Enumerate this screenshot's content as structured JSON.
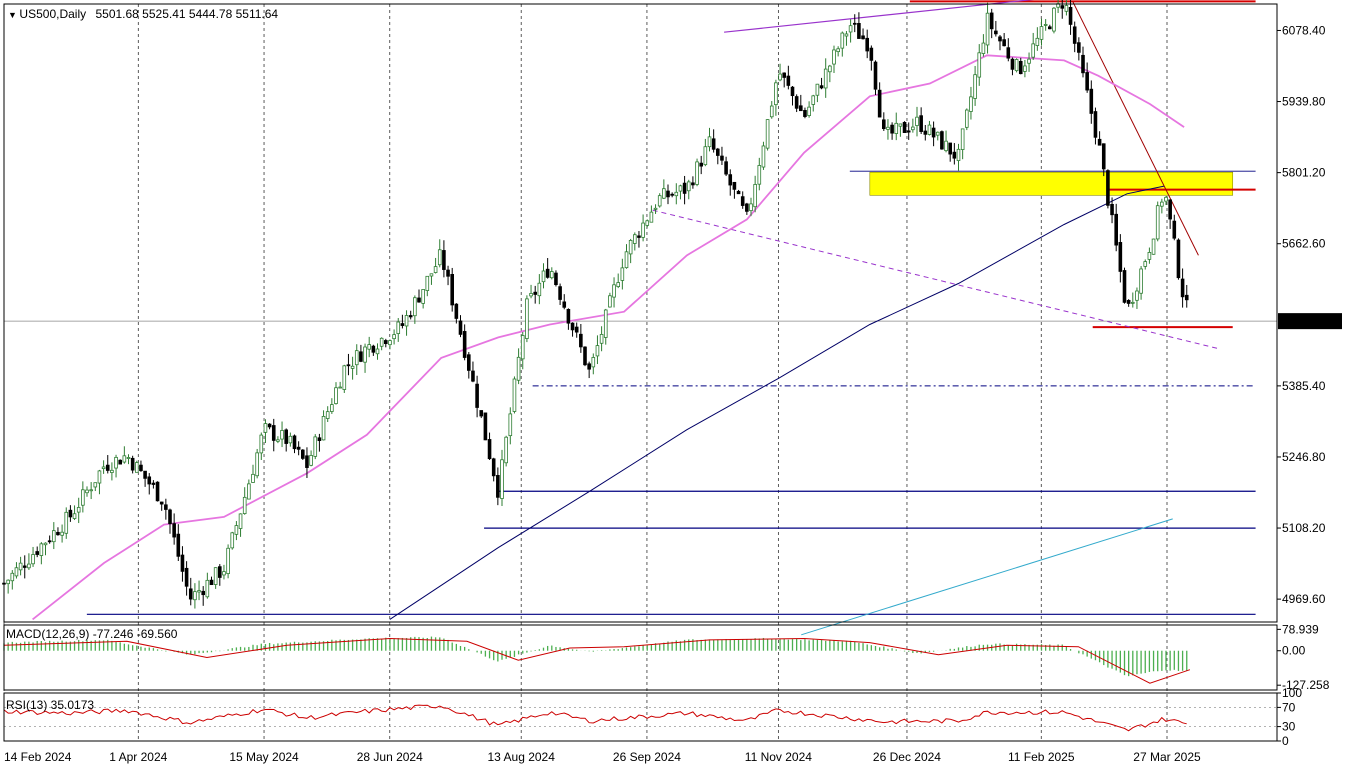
{
  "window": {
    "symbol": "US500,Daily",
    "ohlc": "5501.68 5525.41 5444.78 5511.64"
  },
  "indicators": {
    "macd_title": "MACD(12,26,9) -77.246 -69.560",
    "rsi_title": "RSI(13) 35.0173"
  },
  "colors": {
    "background": "#ffffff",
    "bull_candle": "#2e7d32",
    "bear_candle": "#000000",
    "ma_fast": "#e676e0",
    "ma_slow": "#000066",
    "macd_hist": "#4caf50",
    "macd_signal": "#cc0000",
    "rsi_line": "#cc0000",
    "resistance": "#d40000",
    "zone": "#ffff00",
    "current_price_tag": "#000000"
  },
  "chart_data": [
    {
      "type": "candlestick",
      "name": "price",
      "x_ticks": [
        "14 Feb 2024",
        "1 Apr 2024",
        "15 May 2024",
        "28 Jun 2024",
        "13 Aug 2024",
        "26 Sep 2024",
        "11 Nov 2024",
        "26 Dec 2024",
        "11 Feb 2025",
        "27 Mar 2025"
      ],
      "y_ticks": [
        4969.6,
        5108.2,
        5246.8,
        5385.4,
        5662.6,
        5801.2,
        5939.8,
        6078.4
      ],
      "y_tick_labels": [
        "4969.60",
        "5108.20",
        "5246.80",
        "5385.40",
        "5662.60",
        "5801.20",
        "5939.80",
        "6078.40"
      ],
      "ylim": [
        4925,
        6130
      ],
      "current_price": 5511.64,
      "current_price_label": "5511.64",
      "close_path": [
        {
          "date": "2024-02-14",
          "close": 5000
        },
        {
          "date": "2024-02-26",
          "close": 5070
        },
        {
          "date": "2024-03-08",
          "close": 5130
        },
        {
          "date": "2024-03-20",
          "close": 5230
        },
        {
          "date": "2024-03-28",
          "close": 5250
        },
        {
          "date": "2024-04-10",
          "close": 5160
        },
        {
          "date": "2024-04-19",
          "close": 4970
        },
        {
          "date": "2024-05-01",
          "close": 5030
        },
        {
          "date": "2024-05-15",
          "close": 5300
        },
        {
          "date": "2024-05-23",
          "close": 5280
        },
        {
          "date": "2024-05-30",
          "close": 5230
        },
        {
          "date": "2024-06-12",
          "close": 5420
        },
        {
          "date": "2024-06-20",
          "close": 5460
        },
        {
          "date": "2024-07-02",
          "close": 5500
        },
        {
          "date": "2024-07-16",
          "close": 5640
        },
        {
          "date": "2024-07-25",
          "close": 5440
        },
        {
          "date": "2024-08-05",
          "close": 5180
        },
        {
          "date": "2024-08-15",
          "close": 5540
        },
        {
          "date": "2024-08-23",
          "close": 5620
        },
        {
          "date": "2024-09-06",
          "close": 5410
        },
        {
          "date": "2024-09-18",
          "close": 5640
        },
        {
          "date": "2024-09-30",
          "close": 5750
        },
        {
          "date": "2024-10-10",
          "close": 5770
        },
        {
          "date": "2024-10-18",
          "close": 5860
        },
        {
          "date": "2024-10-31",
          "close": 5710
        },
        {
          "date": "2024-11-11",
          "close": 6000
        },
        {
          "date": "2024-11-20",
          "close": 5910
        },
        {
          "date": "2024-12-06",
          "close": 6090
        },
        {
          "date": "2024-12-13",
          "close": 6050
        },
        {
          "date": "2024-12-18",
          "close": 5870
        },
        {
          "date": "2024-12-30",
          "close": 5900
        },
        {
          "date": "2025-01-13",
          "close": 5830
        },
        {
          "date": "2025-01-23",
          "close": 6100
        },
        {
          "date": "2025-02-03",
          "close": 6000
        },
        {
          "date": "2025-02-19",
          "close": 6140
        },
        {
          "date": "2025-03-03",
          "close": 5860
        },
        {
          "date": "2025-03-13",
          "close": 5530
        },
        {
          "date": "2025-03-21",
          "close": 5660
        },
        {
          "date": "2025-03-26",
          "close": 5770
        },
        {
          "date": "2025-04-01",
          "close": 5580
        },
        {
          "date": "2025-04-04",
          "close": 5512
        }
      ],
      "moving_averages": [
        {
          "id": "fast",
          "points": [
            {
              "date": "2024-02-24",
              "value": 4930
            },
            {
              "date": "2024-03-20",
              "value": 5040
            },
            {
              "date": "2024-04-10",
              "value": 5115
            },
            {
              "date": "2024-05-01",
              "value": 5130
            },
            {
              "date": "2024-05-30",
              "value": 5215
            },
            {
              "date": "2024-06-20",
              "value": 5290
            },
            {
              "date": "2024-07-16",
              "value": 5440
            },
            {
              "date": "2024-08-05",
              "value": 5480
            },
            {
              "date": "2024-08-23",
              "value": 5505
            },
            {
              "date": "2024-09-18",
              "value": 5530
            },
            {
              "date": "2024-10-10",
              "value": 5640
            },
            {
              "date": "2024-10-31",
              "value": 5710
            },
            {
              "date": "2024-11-20",
              "value": 5840
            },
            {
              "date": "2024-12-13",
              "value": 5950
            },
            {
              "date": "2025-01-03",
              "value": 5975
            },
            {
              "date": "2025-01-23",
              "value": 6030
            },
            {
              "date": "2025-02-19",
              "value": 6020
            },
            {
              "date": "2025-03-03",
              "value": 5990
            },
            {
              "date": "2025-03-21",
              "value": 5935
            },
            {
              "date": "2025-04-02",
              "value": 5890
            }
          ]
        },
        {
          "id": "slow",
          "points": [
            {
              "date": "2024-06-28",
              "value": 4930
            },
            {
              "date": "2024-08-05",
              "value": 5070
            },
            {
              "date": "2024-09-06",
              "value": 5180
            },
            {
              "date": "2024-10-10",
              "value": 5300
            },
            {
              "date": "2024-11-11",
              "value": 5400
            },
            {
              "date": "2024-12-13",
              "value": 5505
            },
            {
              "date": "2025-01-13",
              "value": 5585
            },
            {
              "date": "2025-02-19",
              "value": 5700
            },
            {
              "date": "2025-03-13",
              "value": 5760
            },
            {
              "date": "2025-03-26",
              "value": 5775
            }
          ]
        }
      ],
      "horizontal_lines": [
        {
          "id": "resistance-top",
          "value": 6135,
          "from": "2024-12-27",
          "to": "2025-04-27",
          "style": "solid-red"
        },
        {
          "id": "resistance-zone-line",
          "value": 5768,
          "from": "2025-03-06",
          "to": "2025-04-27",
          "style": "solid-red"
        },
        {
          "id": "zone-top-line",
          "value": 5804,
          "from": "2024-12-06",
          "to": "2025-04-27",
          "style": "thin-navy"
        },
        {
          "id": "neckline",
          "value": 5500,
          "from": "2025-03-01",
          "to": "2025-04-19",
          "style": "solid-red"
        },
        {
          "id": "august-support",
          "value": 5385.4,
          "from": "2024-08-17",
          "to": "2025-04-27",
          "style": "dashdot-navy"
        },
        {
          "id": "support-5180",
          "value": 5180,
          "from": "2024-08-05",
          "to": "2025-04-27",
          "style": "navy"
        },
        {
          "id": "support-5108",
          "value": 5108,
          "from": "2024-07-31",
          "to": "2025-04-27",
          "style": "navy"
        },
        {
          "id": "support-4940",
          "value": 4940,
          "from": "2024-03-14",
          "to": "2025-04-27",
          "style": "navy"
        }
      ],
      "zones": [
        {
          "id": "supply-zone",
          "from": "2024-12-13",
          "to": "2025-04-19",
          "low": 5757,
          "high": 5802
        }
      ],
      "trend_lines": [
        {
          "id": "upper-channel",
          "from": {
            "date": "2024-10-23",
            "value": 6075
          },
          "to": {
            "date": "2025-04-19",
            "value": 6180
          },
          "style": "purple"
        },
        {
          "id": "lower-channel",
          "from": {
            "date": "2024-09-28",
            "value": 5728
          },
          "to": {
            "date": "2025-04-14",
            "value": 5458
          },
          "style": "dashed-purple"
        },
        {
          "id": "descending-resistance",
          "from": {
            "date": "2025-02-22",
            "value": 6135
          },
          "to": {
            "date": "2025-04-07",
            "value": 5640
          },
          "style": "dark-red"
        },
        {
          "id": "long-trend",
          "from": {
            "date": "2024-11-19",
            "value": 4900
          },
          "to": {
            "date": "2025-03-29",
            "value": 5126
          },
          "style": "teal"
        }
      ]
    },
    {
      "type": "macd",
      "name": "MACD(12,26,9)",
      "y_ticks": [
        78.939,
        0.0,
        -127.258
      ],
      "y_tick_labels": [
        "78.939",
        "0.00",
        "-127.258"
      ],
      "ylim": [
        -145,
        95
      ],
      "macd_main": -77.246,
      "signal": -69.56,
      "histogram_path": [
        {
          "date": "2024-02-14",
          "value": 30
        },
        {
          "date": "2024-03-20",
          "value": 40
        },
        {
          "date": "2024-04-19",
          "value": -15
        },
        {
          "date": "2024-05-15",
          "value": 25
        },
        {
          "date": "2024-06-20",
          "value": 45
        },
        {
          "date": "2024-07-16",
          "value": 50
        },
        {
          "date": "2024-08-05",
          "value": -40
        },
        {
          "date": "2024-08-23",
          "value": 20
        },
        {
          "date": "2024-09-06",
          "value": -5
        },
        {
          "date": "2024-10-10",
          "value": 40
        },
        {
          "date": "2024-11-11",
          "value": 45
        },
        {
          "date": "2024-12-06",
          "value": 35
        },
        {
          "date": "2024-12-30",
          "value": -10
        },
        {
          "date": "2025-01-23",
          "value": 25
        },
        {
          "date": "2025-02-19",
          "value": 20
        },
        {
          "date": "2025-03-13",
          "value": -95
        },
        {
          "date": "2025-03-26",
          "value": -70
        },
        {
          "date": "2025-04-04",
          "value": -77
        }
      ],
      "signal_path": [
        {
          "date": "2024-02-14",
          "value": 20
        },
        {
          "date": "2024-03-28",
          "value": 35
        },
        {
          "date": "2024-04-25",
          "value": -25
        },
        {
          "date": "2024-05-23",
          "value": 20
        },
        {
          "date": "2024-06-28",
          "value": 45
        },
        {
          "date": "2024-07-25",
          "value": 35
        },
        {
          "date": "2024-08-12",
          "value": -35
        },
        {
          "date": "2024-08-30",
          "value": 10
        },
        {
          "date": "2024-09-18",
          "value": 15
        },
        {
          "date": "2024-10-18",
          "value": 40
        },
        {
          "date": "2024-11-20",
          "value": 45
        },
        {
          "date": "2024-12-13",
          "value": 30
        },
        {
          "date": "2025-01-06",
          "value": -15
        },
        {
          "date": "2025-01-30",
          "value": 20
        },
        {
          "date": "2025-02-24",
          "value": 15
        },
        {
          "date": "2025-03-21",
          "value": -120
        },
        {
          "date": "2025-04-04",
          "value": -70
        }
      ]
    },
    {
      "type": "line",
      "name": "RSI(13)",
      "value": 35.0173,
      "y_ticks": [
        100,
        70,
        30,
        0
      ],
      "y_tick_labels": [
        "100",
        "70",
        "30",
        "0"
      ],
      "ylim": [
        0,
        100
      ],
      "series_path": [
        {
          "date": "2024-02-14",
          "value": 62
        },
        {
          "date": "2024-03-08",
          "value": 58
        },
        {
          "date": "2024-03-28",
          "value": 64
        },
        {
          "date": "2024-04-19",
          "value": 38
        },
        {
          "date": "2024-05-15",
          "value": 66
        },
        {
          "date": "2024-05-30",
          "value": 48
        },
        {
          "date": "2024-06-20",
          "value": 62
        },
        {
          "date": "2024-07-16",
          "value": 74
        },
        {
          "date": "2024-08-05",
          "value": 32
        },
        {
          "date": "2024-08-23",
          "value": 60
        },
        {
          "date": "2024-09-06",
          "value": 42
        },
        {
          "date": "2024-10-10",
          "value": 58
        },
        {
          "date": "2024-10-31",
          "value": 42
        },
        {
          "date": "2024-11-11",
          "value": 64
        },
        {
          "date": "2024-12-18",
          "value": 40
        },
        {
          "date": "2025-01-13",
          "value": 42
        },
        {
          "date": "2025-01-23",
          "value": 60
        },
        {
          "date": "2025-02-19",
          "value": 60
        },
        {
          "date": "2025-03-13",
          "value": 22
        },
        {
          "date": "2025-03-26",
          "value": 46
        },
        {
          "date": "2025-04-04",
          "value": 35
        }
      ]
    }
  ]
}
